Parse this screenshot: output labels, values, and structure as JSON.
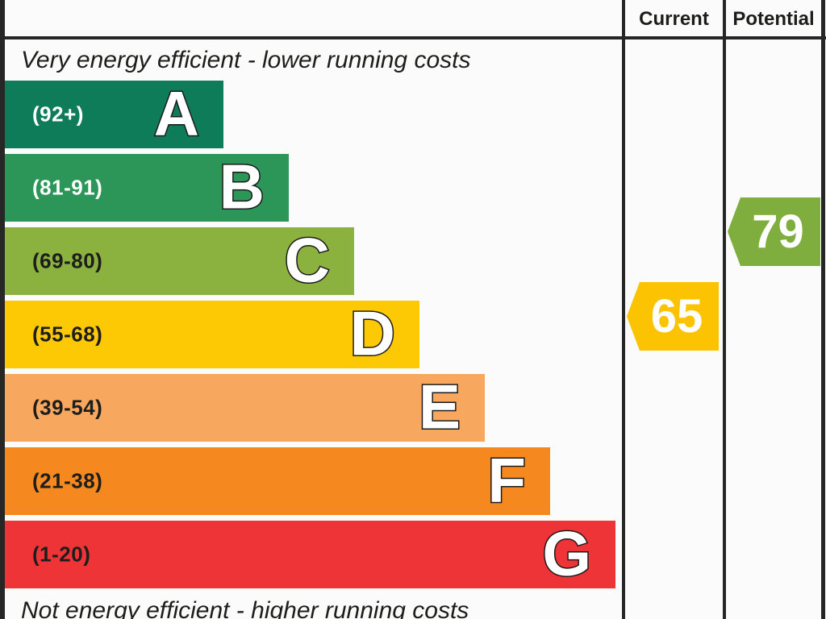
{
  "header": {
    "current_label": "Current",
    "potential_label": "Potential"
  },
  "top_caption": "Very energy efficient - lower running costs",
  "bottom_caption": "Not energy efficient - higher running costs",
  "chart_data": {
    "type": "bar",
    "title": "Energy efficiency rating chart (EPC)",
    "categories": [
      "A",
      "B",
      "C",
      "D",
      "E",
      "F",
      "G"
    ],
    "bands": [
      {
        "letter": "A",
        "range_label": "(92+)",
        "min": 92,
        "max": 100,
        "color": "#0f7c59",
        "label_color": "#ffffff"
      },
      {
        "letter": "B",
        "range_label": "(81-91)",
        "min": 81,
        "max": 91,
        "color": "#2b9658",
        "label_color": "#ffffff"
      },
      {
        "letter": "C",
        "range_label": "(69-80)",
        "min": 69,
        "max": 80,
        "color": "#8bb13e",
        "label_color": "#1d1d1b"
      },
      {
        "letter": "D",
        "range_label": "(55-68)",
        "min": 55,
        "max": 68,
        "color": "#fdc804",
        "label_color": "#1d1d1b"
      },
      {
        "letter": "E",
        "range_label": "(39-54)",
        "min": 39,
        "max": 54,
        "color": "#f8a75f",
        "label_color": "#1d1d1b"
      },
      {
        "letter": "F",
        "range_label": "(21-38)",
        "min": 21,
        "max": 38,
        "color": "#f5881f",
        "label_color": "#1d1d1b"
      },
      {
        "letter": "G",
        "range_label": "(1-20)",
        "min": 1,
        "max": 20,
        "color": "#ee3437",
        "label_color": "#1d1d1b"
      }
    ],
    "current": {
      "value": 65,
      "band": "D",
      "color": "#fcc303"
    },
    "potential": {
      "value": 79,
      "band": "C",
      "color": "#7fae3f"
    }
  }
}
